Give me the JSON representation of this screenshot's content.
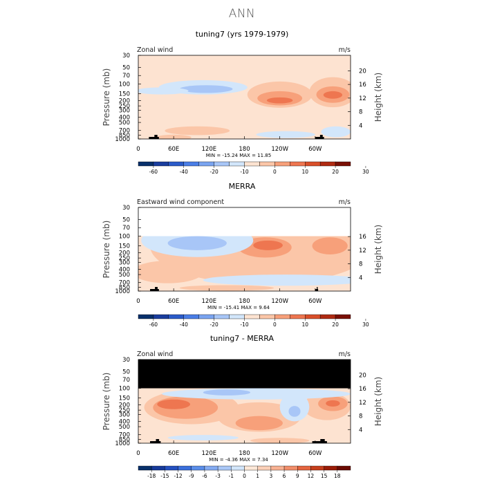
{
  "figure_title": "ANN",
  "chart_data": [
    {
      "type": "heatmap",
      "title": "tuning7 (yrs 1979-1979)",
      "subtitle_left": "Zonal wind",
      "units": "m/s",
      "ylabel_left": "Pressure (mb)",
      "ylabel_right": "Height (km)",
      "x_ticks": [
        "0",
        "60E",
        "120E",
        "180",
        "120W",
        "60W"
      ],
      "x_tick_values": [
        0,
        60,
        120,
        180,
        240,
        300
      ],
      "xlim": [
        0,
        360
      ],
      "pressure_ticks": [
        "30",
        "50",
        "70",
        "100",
        "150",
        "200",
        "250",
        "300",
        "400",
        "500",
        "700",
        "850",
        "1000"
      ],
      "pressure_tick_values": [
        30,
        50,
        70,
        100,
        150,
        200,
        250,
        300,
        400,
        500,
        700,
        850,
        1000
      ],
      "height_ticks": [
        "4",
        "8",
        "12",
        "16",
        "20"
      ],
      "height_tick_values": [
        4,
        8,
        12,
        16,
        20
      ],
      "stats": "MIN = -15.24   MAX =  11.85",
      "min": -15.24,
      "max": 11.85,
      "colorbar_labels": [
        "-60",
        "-40",
        "-20",
        "-10",
        "0",
        "10",
        "20",
        "30"
      ],
      "masked_top_mb": 30,
      "topography": [
        [
          18,
          35
        ],
        [
          300,
          315
        ]
      ],
      "contours": [
        {
          "cx": 240,
          "cy": 180,
          "rx": 55,
          "ry": 90,
          "level": 1
        },
        {
          "cx": 240,
          "cy": 190,
          "rx": 38,
          "ry": 55,
          "level": 2
        },
        {
          "cx": 240,
          "cy": 200,
          "rx": 22,
          "ry": 25,
          "level": 3
        },
        {
          "cx": 330,
          "cy": 170,
          "rx": 40,
          "ry": 95,
          "level": 1
        },
        {
          "cx": 330,
          "cy": 165,
          "rx": 28,
          "ry": 55,
          "level": 2
        },
        {
          "cx": 330,
          "cy": 160,
          "rx": 16,
          "ry": 25,
          "level": 3
        },
        {
          "cx": 110,
          "cy": 120,
          "rx": 75,
          "ry": 35,
          "level": -1
        },
        {
          "cx": 115,
          "cy": 125,
          "rx": 45,
          "ry": 20,
          "level": -2
        },
        {
          "cx": 40,
          "cy": 135,
          "rx": 45,
          "ry": 20,
          "level": -1
        },
        {
          "cx": 250,
          "cy": 840,
          "rx": 50,
          "ry": 120,
          "level": -1
        },
        {
          "cx": 335,
          "cy": 760,
          "rx": 25,
          "ry": 170,
          "level": -1
        },
        {
          "cx": 100,
          "cy": 720,
          "rx": 55,
          "ry": 130,
          "level": 1
        },
        {
          "cx": 60,
          "cy": 940,
          "rx": 30,
          "ry": 60,
          "level": 1
        }
      ]
    },
    {
      "type": "heatmap",
      "title": "MERRA",
      "subtitle_left": "Eastward wind component",
      "units": "m/s",
      "ylabel_left": "Pressure (mb)",
      "ylabel_right": "Height (km)",
      "x_ticks": [
        "0",
        "60E",
        "120E",
        "180",
        "120W",
        "60W"
      ],
      "x_tick_values": [
        0,
        60,
        120,
        180,
        240,
        300
      ],
      "xlim": [
        0,
        360
      ],
      "pressure_ticks": [
        "30",
        "50",
        "70",
        "100",
        "150",
        "200",
        "250",
        "300",
        "400",
        "500",
        "700",
        "850",
        "1000"
      ],
      "pressure_tick_values": [
        30,
        50,
        70,
        100,
        150,
        200,
        250,
        300,
        400,
        500,
        700,
        850,
        1000
      ],
      "height_ticks": [
        "4",
        "8",
        "12",
        "16"
      ],
      "height_tick_values": [
        4,
        8,
        12,
        16
      ],
      "stats": "MIN = -15.41   MAX =   9.64",
      "min": -15.41,
      "max": 9.64,
      "colorbar_labels": [
        "-60",
        "-40",
        "-20",
        "-10",
        "0",
        "10",
        "20",
        "30"
      ],
      "masked_top_mb": 100,
      "mask_color": "#ffffff",
      "topography": [
        [
          20,
          35
        ],
        [
          300,
          305
        ]
      ],
      "contours": [
        {
          "cx": 210,
          "cy": 350,
          "rx": 190,
          "ry": 400,
          "level": 1
        },
        {
          "cx": 215,
          "cy": 175,
          "rx": 45,
          "ry": 70,
          "level": 2
        },
        {
          "cx": 220,
          "cy": 150,
          "rx": 25,
          "ry": 30,
          "level": 3
        },
        {
          "cx": 325,
          "cy": 160,
          "rx": 30,
          "ry": 55,
          "level": 2
        },
        {
          "cx": 50,
          "cy": 500,
          "rx": 60,
          "ry": 220,
          "level": 1
        },
        {
          "cx": 100,
          "cy": 150,
          "rx": 95,
          "ry": 90,
          "level": -1
        },
        {
          "cx": 100,
          "cy": 140,
          "rx": 50,
          "ry": 40,
          "level": -2
        },
        {
          "cx": 250,
          "cy": 650,
          "rx": 140,
          "ry": 150,
          "level": -1
        },
        {
          "cx": 150,
          "cy": 880,
          "rx": 80,
          "ry": 70,
          "level": 1
        }
      ]
    },
    {
      "type": "heatmap",
      "title": "tuning7 - MERRA",
      "subtitle_left": "Zonal wind",
      "units": "m/s",
      "ylabel_left": "Pressure (mb)",
      "ylabel_right": "Height (km)",
      "x_ticks": [
        "0",
        "60E",
        "120E",
        "180",
        "120W",
        "60W"
      ],
      "x_tick_values": [
        0,
        60,
        120,
        180,
        240,
        300
      ],
      "xlim": [
        0,
        360
      ],
      "pressure_ticks": [
        "30",
        "50",
        "70",
        "100",
        "150",
        "200",
        "250",
        "300",
        "400",
        "500",
        "700",
        "850",
        "1000"
      ],
      "pressure_tick_values": [
        30,
        50,
        70,
        100,
        150,
        200,
        250,
        300,
        400,
        500,
        700,
        850,
        1000
      ],
      "height_ticks": [
        "4",
        "8",
        "12",
        "16",
        "20"
      ],
      "height_tick_values": [
        4,
        8,
        12,
        16,
        20
      ],
      "stats": "MIN =  -4.36   MAX =   7.34",
      "min": -4.36,
      "max": 7.34,
      "colorbar_labels": [
        "-18",
        "-15",
        "-12",
        "-9",
        "-6",
        "-3",
        "-1",
        "0",
        "1",
        "3",
        "6",
        "9",
        "12",
        "15",
        "18"
      ],
      "masked_top_mb": 100,
      "mask_color": "#000000",
      "topography": [
        [
          20,
          38
        ],
        [
          295,
          320
        ]
      ],
      "contours": [
        {
          "cx": 90,
          "cy": 280,
          "rx": 80,
          "ry": 170,
          "level": 1
        },
        {
          "cx": 80,
          "cy": 250,
          "rx": 55,
          "ry": 110,
          "level": 2
        },
        {
          "cx": 60,
          "cy": 200,
          "rx": 28,
          "ry": 40,
          "level": 3
        },
        {
          "cx": 205,
          "cy": 400,
          "rx": 70,
          "ry": 220,
          "level": 1
        },
        {
          "cx": 205,
          "cy": 450,
          "rx": 40,
          "ry": 130,
          "level": 2
        },
        {
          "cx": 320,
          "cy": 250,
          "rx": 40,
          "ry": 130,
          "level": 1
        },
        {
          "cx": 330,
          "cy": 200,
          "rx": 25,
          "ry": 60,
          "level": 2
        },
        {
          "cx": 330,
          "cy": 190,
          "rx": 12,
          "ry": 25,
          "level": 3
        },
        {
          "cx": 200,
          "cy": 130,
          "rx": 160,
          "ry": 30,
          "level": -1
        },
        {
          "cx": 150,
          "cy": 120,
          "rx": 40,
          "ry": 15,
          "level": -2
        },
        {
          "cx": 265,
          "cy": 260,
          "rx": 25,
          "ry": 140,
          "level": -1
        },
        {
          "cx": 265,
          "cy": 270,
          "rx": 10,
          "ry": 60,
          "level": -2
        },
        {
          "cx": 110,
          "cy": 800,
          "rx": 60,
          "ry": 90,
          "level": -1
        },
        {
          "cx": 240,
          "cy": 900,
          "rx": 50,
          "ry": 70,
          "level": 1
        }
      ]
    }
  ]
}
